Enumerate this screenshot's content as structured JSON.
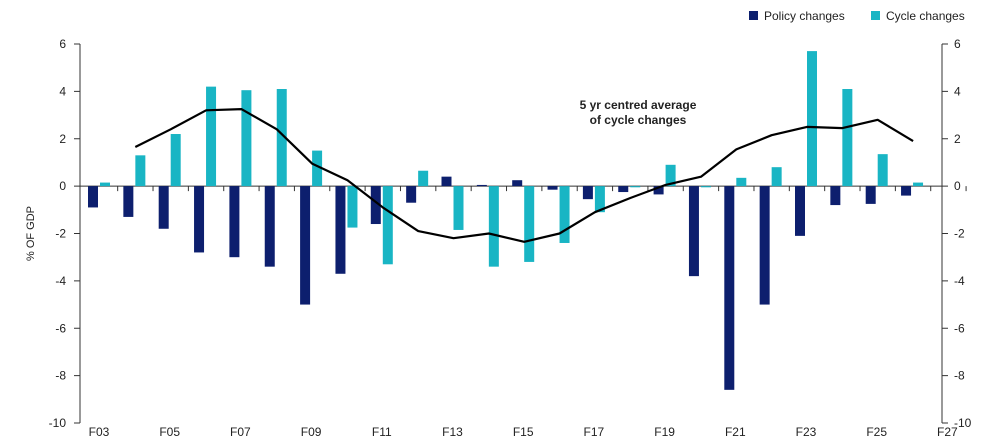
{
  "chart_data": {
    "type": "bar",
    "ylabel": "% OF GDP",
    "ylim": [
      -10,
      6
    ],
    "y_ticks": [
      6,
      4,
      2,
      0,
      -2,
      -4,
      -6,
      -8,
      -10
    ],
    "right_axis_ticks": [
      6,
      4,
      2,
      0,
      -2,
      -4,
      -6,
      -8,
      -10
    ],
    "categories": [
      "F03",
      "F04",
      "F05",
      "F06",
      "F07",
      "F08",
      "F09",
      "F10",
      "F11",
      "F12",
      "F13",
      "F14",
      "F15",
      "F16",
      "F17",
      "F18",
      "F19",
      "F20",
      "F21",
      "F22",
      "F23",
      "F24",
      "F25",
      "F26"
    ],
    "x_tick_labels": [
      "F03",
      "F05",
      "F07",
      "F09",
      "F11",
      "F13",
      "F15",
      "F17",
      "F19",
      "F21",
      "F23",
      "F25",
      "F27"
    ],
    "grid": false,
    "legend_position": "top-right",
    "series": [
      {
        "name": "Policy changes",
        "type": "bar",
        "color": "#0d1f6e",
        "values": [
          -0.9,
          -1.3,
          -1.8,
          -2.8,
          -3.0,
          -3.4,
          -5.0,
          -3.7,
          -1.6,
          -0.7,
          0.4,
          0.05,
          0.25,
          -0.15,
          -0.55,
          -0.25,
          -0.35,
          -3.8,
          -8.6,
          -5.0,
          -2.1,
          -0.8,
          -0.75,
          -0.4
        ]
      },
      {
        "name": "Cycle changes",
        "type": "bar",
        "color": "#19b5c4",
        "values": [
          0.15,
          1.3,
          2.2,
          4.2,
          4.05,
          4.1,
          1.5,
          -1.75,
          -3.3,
          0.65,
          -1.85,
          -3.4,
          -3.2,
          -2.4,
          -1.1,
          -0.05,
          0.9,
          -0.05,
          0.35,
          0.8,
          5.7,
          4.1,
          1.35,
          0.15
        ]
      },
      {
        "name": "",
        "type": "line",
        "color": "#000000",
        "values": [
          null,
          1.65,
          2.4,
          3.2,
          3.25,
          2.4,
          0.95,
          0.25,
          -0.9,
          -1.9,
          -2.2,
          -2.0,
          -2.35,
          -2.0,
          -1.1,
          -0.5,
          0.05,
          0.4,
          1.55,
          2.15,
          2.5,
          2.45,
          2.8,
          1.9
        ]
      }
    ],
    "annotations": [
      {
        "lines": [
          "5 yr centred average",
          "of cycle changes"
        ]
      }
    ]
  }
}
